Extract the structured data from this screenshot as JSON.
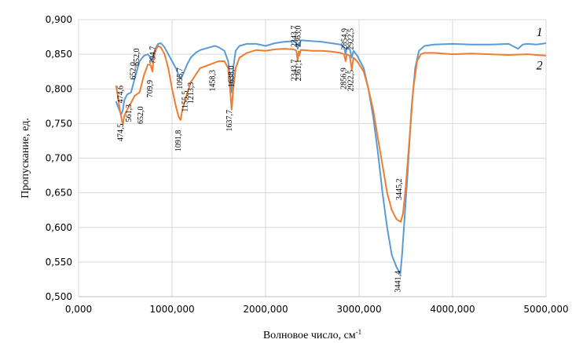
{
  "chart_data": {
    "type": "line",
    "title": "",
    "xlabel": "Волновое число, см",
    "xlabel_sup": "-1",
    "ylabel": "Пропускание, ед.",
    "xlim": [
      0,
      5000
    ],
    "ylim": [
      0.5,
      0.9
    ],
    "grid": "vertical",
    "x_ticks": [
      {
        "value": 0,
        "label": "0,000"
      },
      {
        "value": 1000,
        "label": "1000,000"
      },
      {
        "value": 2000,
        "label": "2000,000"
      },
      {
        "value": 3000,
        "label": "3000,000"
      },
      {
        "value": 4000,
        "label": "4000,000"
      },
      {
        "value": 5000,
        "label": "5000,000"
      }
    ],
    "y_ticks": [
      {
        "value": 0.5,
        "label": "0,500"
      },
      {
        "value": 0.55,
        "label": "0,550"
      },
      {
        "value": 0.6,
        "label": "0,600"
      },
      {
        "value": 0.65,
        "label": "0,650"
      },
      {
        "value": 0.7,
        "label": "0,700"
      },
      {
        "value": 0.75,
        "label": "0,750"
      },
      {
        "value": 0.8,
        "label": "0,800"
      },
      {
        "value": 0.85,
        "label": "0,850"
      },
      {
        "value": 0.9,
        "label": "0,900"
      }
    ],
    "series": [
      {
        "name": "1",
        "color": "#5B9BD5",
        "x": [
          400,
          420,
          440,
          460,
          474,
          490,
          520,
          561,
          600,
          652,
          700,
          740,
          770,
          790,
          800,
          820,
          850,
          880,
          920,
          960,
          1000,
          1040,
          1070,
          1095,
          1120,
          1160,
          1200,
          1250,
          1300,
          1400,
          1460,
          1500,
          1560,
          1600,
          1620,
          1637,
          1655,
          1680,
          1720,
          1800,
          1900,
          2000,
          2100,
          2200,
          2300,
          2330,
          2343,
          2355,
          2363,
          2375,
          2400,
          2500,
          2600,
          2700,
          2800,
          2840,
          2855,
          2870,
          2900,
          2922,
          2940,
          2980,
          3050,
          3100,
          3150,
          3200,
          3250,
          3300,
          3350,
          3400,
          3420,
          3441,
          3460,
          3480,
          3520,
          3560,
          3600,
          3640,
          3700,
          3800,
          4000,
          4200,
          4400,
          4600,
          4700,
          4750,
          4800,
          4900,
          5000
        ],
        "y": [
          0.782,
          0.775,
          0.768,
          0.764,
          0.77,
          0.784,
          0.792,
          0.795,
          0.815,
          0.84,
          0.848,
          0.85,
          0.845,
          0.838,
          0.848,
          0.858,
          0.865,
          0.866,
          0.86,
          0.85,
          0.84,
          0.83,
          0.82,
          0.815,
          0.822,
          0.835,
          0.845,
          0.852,
          0.856,
          0.86,
          0.862,
          0.86,
          0.855,
          0.84,
          0.815,
          0.795,
          0.83,
          0.855,
          0.862,
          0.865,
          0.865,
          0.862,
          0.866,
          0.868,
          0.869,
          0.866,
          0.858,
          0.866,
          0.862,
          0.87,
          0.87,
          0.869,
          0.868,
          0.866,
          0.864,
          0.86,
          0.85,
          0.86,
          0.858,
          0.845,
          0.855,
          0.848,
          0.83,
          0.8,
          0.76,
          0.71,
          0.65,
          0.6,
          0.56,
          0.543,
          0.538,
          0.533,
          0.56,
          0.6,
          0.68,
          0.77,
          0.83,
          0.855,
          0.862,
          0.864,
          0.865,
          0.864,
          0.864,
          0.865,
          0.858,
          0.864,
          0.865,
          0.864,
          0.866
        ]
      },
      {
        "name": "2",
        "color": "#ED7D31",
        "x": [
          400,
          420,
          440,
          460,
          474,
          490,
          520,
          561,
          600,
          652,
          700,
          740,
          770,
          790,
          800,
          820,
          850,
          880,
          920,
          960,
          1000,
          1040,
          1070,
          1091,
          1110,
          1155,
          1200,
          1213,
          1250,
          1300,
          1400,
          1458,
          1500,
          1560,
          1600,
          1620,
          1637,
          1655,
          1680,
          1720,
          1800,
          1900,
          2000,
          2100,
          2200,
          2300,
          2330,
          2343,
          2355,
          2361,
          2375,
          2400,
          2500,
          2600,
          2700,
          2800,
          2840,
          2856,
          2870,
          2900,
          2922,
          2940,
          2980,
          3050,
          3100,
          3150,
          3200,
          3250,
          3300,
          3350,
          3400,
          3420,
          3445,
          3470,
          3500,
          3540,
          3580,
          3620,
          3660,
          3700,
          3800,
          4000,
          4200,
          4400,
          4600,
          4800,
          5000
        ],
        "y": [
          0.805,
          0.79,
          0.77,
          0.757,
          0.748,
          0.762,
          0.77,
          0.78,
          0.79,
          0.795,
          0.82,
          0.835,
          0.835,
          0.825,
          0.84,
          0.855,
          0.862,
          0.86,
          0.85,
          0.83,
          0.8,
          0.775,
          0.76,
          0.755,
          0.77,
          0.79,
          0.81,
          0.812,
          0.82,
          0.83,
          0.835,
          0.838,
          0.84,
          0.84,
          0.83,
          0.8,
          0.77,
          0.8,
          0.83,
          0.845,
          0.852,
          0.856,
          0.855,
          0.857,
          0.858,
          0.857,
          0.855,
          0.84,
          0.854,
          0.848,
          0.856,
          0.856,
          0.855,
          0.855,
          0.854,
          0.852,
          0.85,
          0.84,
          0.85,
          0.848,
          0.828,
          0.845,
          0.84,
          0.825,
          0.8,
          0.77,
          0.73,
          0.69,
          0.65,
          0.625,
          0.612,
          0.61,
          0.608,
          0.62,
          0.66,
          0.73,
          0.8,
          0.84,
          0.85,
          0.852,
          0.852,
          0.85,
          0.851,
          0.85,
          0.849,
          0.85,
          0.848
        ]
      }
    ],
    "series_labels": [
      {
        "text": "1",
        "x": 4930,
        "y": 0.876
      },
      {
        "text": "2",
        "x": 4930,
        "y": 0.828
      }
    ],
    "annotations": [
      {
        "text": "474,6",
        "x": 474,
        "y": 0.792,
        "rot": -90
      },
      {
        "text": "561,3",
        "x": 561,
        "y": 0.765,
        "rot": -90
      },
      {
        "text": "652,0",
        "x": 608,
        "y": 0.826,
        "rot": -90
      },
      {
        "text": "652,0",
        "x": 645,
        "y": 0.846,
        "rot": -90
      },
      {
        "text": "652,0",
        "x": 690,
        "y": 0.762,
        "rot": -90
      },
      {
        "text": "794,7",
        "x": 820,
        "y": 0.849,
        "rot": -90
      },
      {
        "text": "709,9",
        "x": 790,
        "y": 0.8,
        "rot": -90
      },
      {
        "text": "1095,7",
        "x": 1110,
        "y": 0.815,
        "rot": -90
      },
      {
        "text": "474,5",
        "x": 474,
        "y": 0.737,
        "rot": -90
      },
      {
        "text": "1091,8",
        "x": 1091,
        "y": 0.725,
        "rot": -90
      },
      {
        "text": "1155,5",
        "x": 1165,
        "y": 0.782,
        "rot": -90
      },
      {
        "text": "1213,3",
        "x": 1225,
        "y": 0.794,
        "rot": -90
      },
      {
        "text": "1458,3",
        "x": 1458,
        "y": 0.812,
        "rot": -90
      },
      {
        "text": "1638,0",
        "x": 1660,
        "y": 0.818,
        "rot": -90
      },
      {
        "text": "1637,7",
        "x": 1637,
        "y": 0.754,
        "rot": -90
      },
      {
        "text": "2343,7",
        "x": 2330,
        "y": 0.876,
        "rot": -90
      },
      {
        "text": "2363,0",
        "x": 2375,
        "y": 0.876,
        "rot": -90
      },
      {
        "text": "2343,7",
        "x": 2330,
        "y": 0.827,
        "rot": -90
      },
      {
        "text": "2361,1",
        "x": 2378,
        "y": 0.827,
        "rot": -90
      },
      {
        "text": "2854,9",
        "x": 2868,
        "y": 0.872,
        "rot": -90
      },
      {
        "text": "2922,5",
        "x": 2935,
        "y": 0.872,
        "rot": -90
      },
      {
        "text": "2856,9",
        "x": 2860,
        "y": 0.815,
        "rot": -90
      },
      {
        "text": "2922,5",
        "x": 2935,
        "y": 0.812,
        "rot": -90
      },
      {
        "text": "3445,2",
        "x": 3452,
        "y": 0.655,
        "rot": -90
      },
      {
        "text": "3441,4",
        "x": 3441,
        "y": 0.522,
        "rot": -90
      }
    ]
  }
}
